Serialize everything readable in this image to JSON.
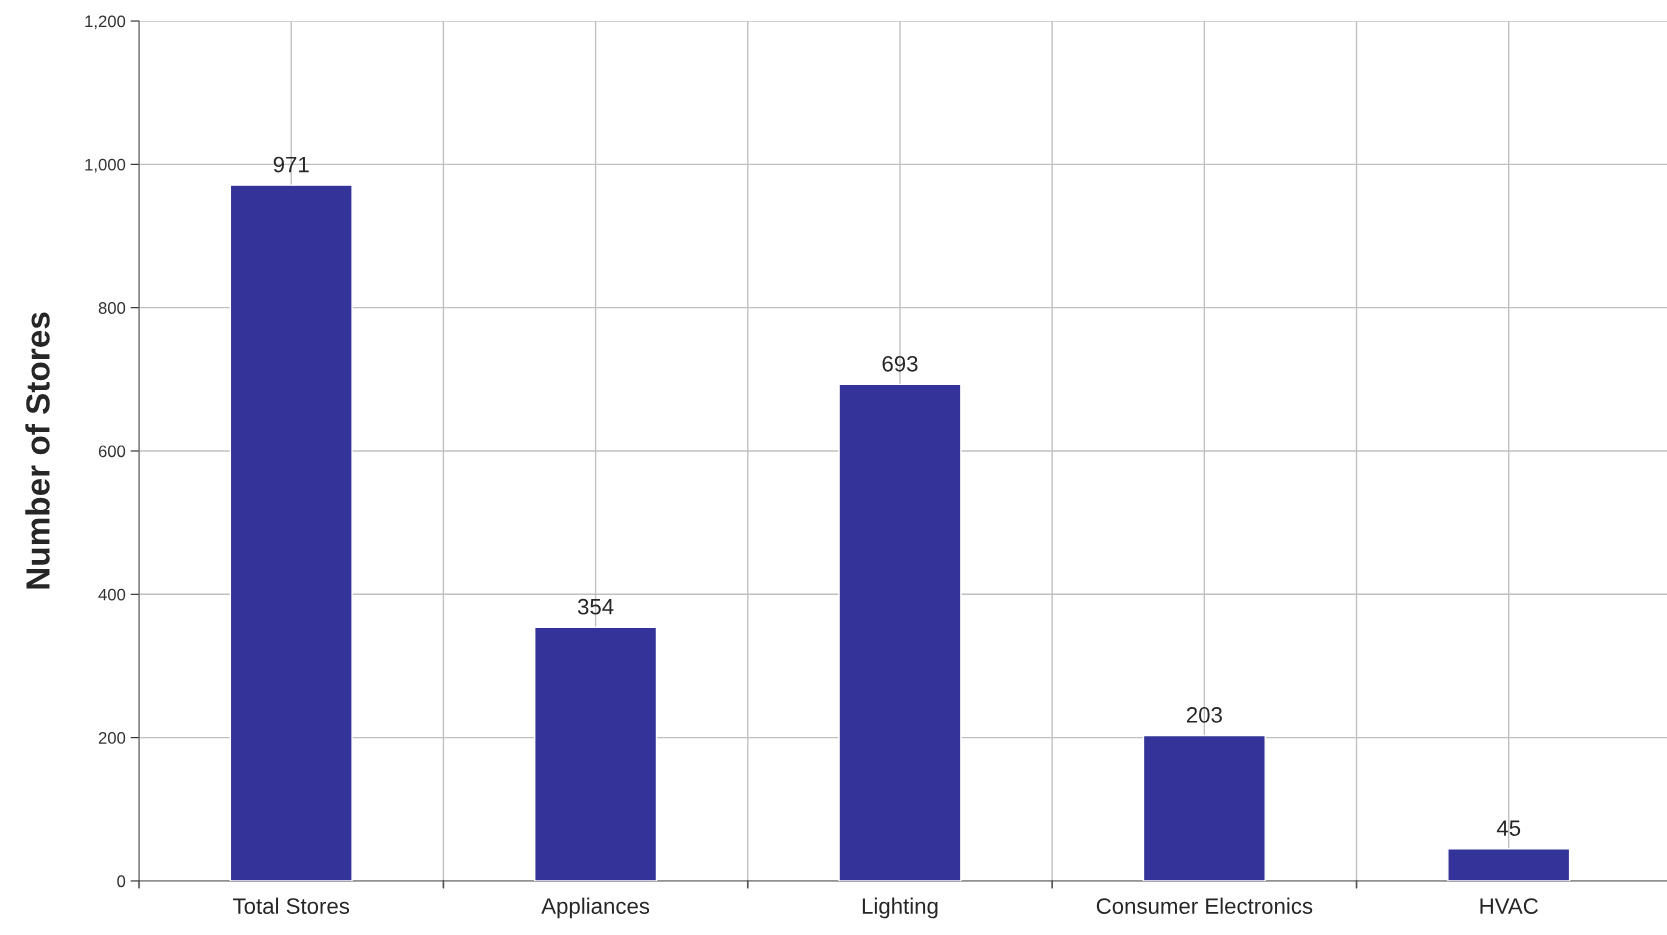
{
  "chart_data": {
    "type": "bar",
    "ylabel": "Number of Stores",
    "categories": [
      "Total Stores",
      "Appliances",
      "Lighting",
      "Consumer Electronics",
      "HVAC"
    ],
    "values": [
      971,
      354,
      693,
      203,
      45
    ],
    "color": "#333399",
    "ylim": [
      0,
      1200
    ],
    "yticks": [
      0,
      200,
      400,
      600,
      800,
      {
        "value": 1000,
        "label": "1,000"
      },
      {
        "value": 1200,
        "label": "1,200"
      }
    ],
    "grid": true,
    "data_labels": true
  }
}
